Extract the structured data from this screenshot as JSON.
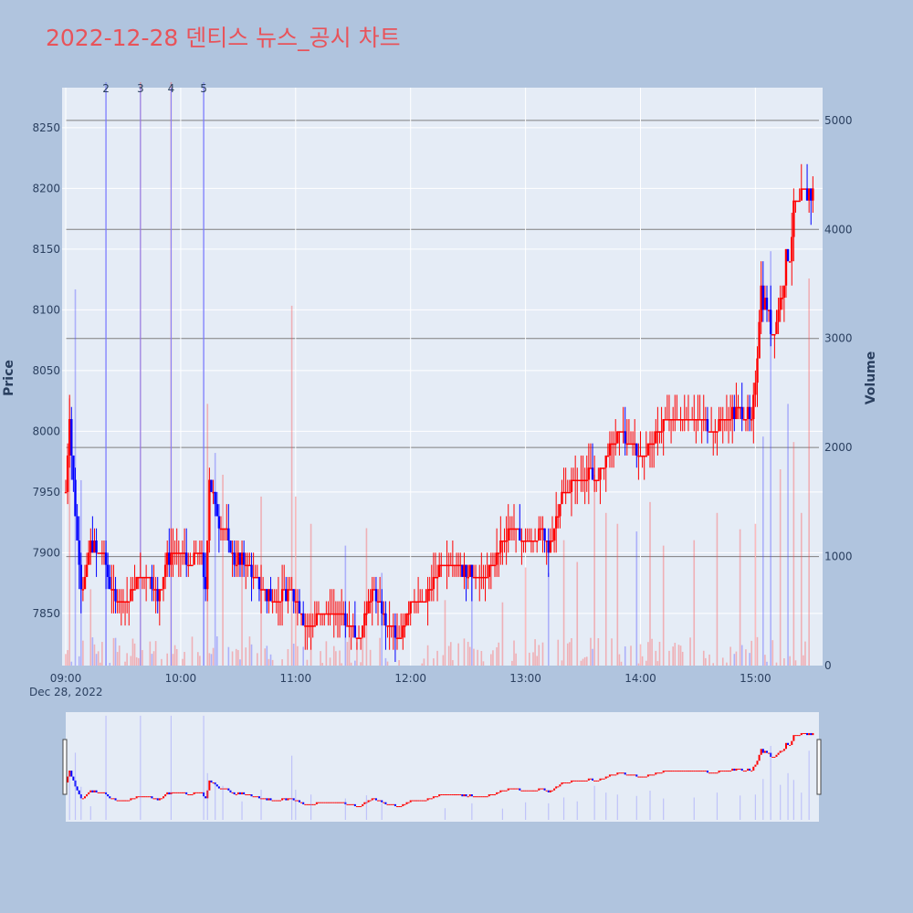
{
  "title": "2022-12-28 덴티스 뉴스_공시 차트",
  "colors": {
    "background": "#b0c4de",
    "plot_bg": "#e5ecf6",
    "up": "#ff0000",
    "down": "#0000ff",
    "title": "#e8535a",
    "news_line": "#8080ff"
  },
  "chart_data": {
    "type": "candlestick",
    "ylabel": "Price",
    "y2label": "Volume",
    "x_ticks": [
      "09:00",
      "10:00",
      "11:00",
      "12:00",
      "13:00",
      "14:00",
      "15:00"
    ],
    "x_date_label": "Dec 28, 2022",
    "price_ticks": [
      7850,
      7900,
      7950,
      8000,
      8050,
      8100,
      8150,
      8200,
      8250
    ],
    "price_range": [
      7807,
      8283
    ],
    "volume_ticks": [
      0,
      1000,
      2000,
      3000,
      4000,
      5000
    ],
    "volume_range": [
      0,
      5300
    ],
    "session": [
      "09:00",
      "15:30"
    ],
    "news_markers": [
      {
        "label": "2",
        "time": "09:21"
      },
      {
        "label": "3",
        "time": "09:39"
      },
      {
        "label": "4",
        "time": "09:55"
      },
      {
        "label": "5",
        "time": "10:12"
      }
    ],
    "price_path": [
      [
        "09:00",
        7950
      ],
      [
        "09:02",
        8010
      ],
      [
        "09:04",
        7960
      ],
      [
        "09:06",
        7910
      ],
      [
        "09:08",
        7870
      ],
      [
        "09:10",
        7880
      ],
      [
        "09:13",
        7910
      ],
      [
        "09:16",
        7900
      ],
      [
        "09:20",
        7900
      ],
      [
        "09:23",
        7870
      ],
      [
        "09:26",
        7860
      ],
      [
        "09:33",
        7860
      ],
      [
        "09:38",
        7880
      ],
      [
        "09:44",
        7880
      ],
      [
        "09:48",
        7860
      ],
      [
        "09:52",
        7890
      ],
      [
        "09:56",
        7905
      ],
      [
        "10:05",
        7890
      ],
      [
        "10:10",
        7905
      ],
      [
        "10:13",
        7870
      ],
      [
        "10:15",
        7960
      ],
      [
        "10:19",
        7930
      ],
      [
        "10:23",
        7920
      ],
      [
        "10:28",
        7895
      ],
      [
        "10:35",
        7890
      ],
      [
        "10:42",
        7870
      ],
      [
        "10:50",
        7860
      ],
      [
        "10:58",
        7870
      ],
      [
        "11:05",
        7840
      ],
      [
        "11:15",
        7850
      ],
      [
        "11:25",
        7850
      ],
      [
        "11:33",
        7830
      ],
      [
        "11:40",
        7870
      ],
      [
        "11:47",
        7840
      ],
      [
        "11:55",
        7830
      ],
      [
        "12:00",
        7860
      ],
      [
        "12:08",
        7860
      ],
      [
        "12:15",
        7890
      ],
      [
        "12:25",
        7890
      ],
      [
        "12:33",
        7880
      ],
      [
        "12:40",
        7880
      ],
      [
        "12:45",
        7900
      ],
      [
        "12:52",
        7920
      ],
      [
        "13:00",
        7910
      ],
      [
        "13:08",
        7920
      ],
      [
        "13:12",
        7900
      ],
      [
        "13:18",
        7945
      ],
      [
        "13:25",
        7960
      ],
      [
        "13:32",
        7965
      ],
      [
        "13:38",
        7960
      ],
      [
        "13:45",
        7990
      ],
      [
        "13:50",
        8000
      ],
      [
        "13:55",
        7990
      ],
      [
        "14:00",
        7980
      ],
      [
        "14:05",
        7990
      ],
      [
        "14:12",
        8005
      ],
      [
        "14:20",
        8010
      ],
      [
        "14:28",
        8015
      ],
      [
        "14:36",
        8000
      ],
      [
        "14:44",
        8010
      ],
      [
        "14:52",
        8020
      ],
      [
        "14:58",
        8010
      ],
      [
        "15:00",
        8040
      ],
      [
        "15:03",
        8120
      ],
      [
        "15:06",
        8100
      ],
      [
        "15:09",
        8080
      ],
      [
        "15:12",
        8100
      ],
      [
        "15:15",
        8130
      ],
      [
        "15:18",
        8150
      ],
      [
        "15:20",
        8180
      ],
      [
        "15:30",
        8200
      ]
    ],
    "volume_spikes": [
      [
        "09:02",
        2450
      ],
      [
        "09:05",
        3450
      ],
      [
        "09:08",
        1700
      ],
      [
        "09:13",
        700
      ],
      [
        "09:21",
        5350
      ],
      [
        "09:39",
        5350
      ],
      [
        "09:55",
        5350
      ],
      [
        "10:12",
        5350
      ],
      [
        "10:14",
        2400
      ],
      [
        "10:18",
        1950
      ],
      [
        "10:22",
        1750
      ],
      [
        "10:32",
        950
      ],
      [
        "10:42",
        1550
      ],
      [
        "10:58",
        3300
      ],
      [
        "11:00",
        1550
      ],
      [
        "11:08",
        1300
      ],
      [
        "11:26",
        1100
      ],
      [
        "11:37",
        1260
      ],
      [
        "11:45",
        850
      ],
      [
        "12:18",
        600
      ],
      [
        "12:32",
        850
      ],
      [
        "12:48",
        580
      ],
      [
        "13:00",
        900
      ],
      [
        "13:12",
        850
      ],
      [
        "13:20",
        1150
      ],
      [
        "13:27",
        950
      ],
      [
        "13:36",
        1750
      ],
      [
        "13:42",
        1400
      ],
      [
        "13:48",
        1300
      ],
      [
        "13:58",
        1230
      ],
      [
        "14:05",
        1500
      ],
      [
        "14:12",
        1100
      ],
      [
        "14:28",
        1150
      ],
      [
        "14:40",
        1400
      ],
      [
        "14:52",
        1250
      ],
      [
        "15:00",
        1300
      ],
      [
        "15:04",
        2100
      ],
      [
        "15:08",
        3800
      ],
      [
        "15:13",
        1800
      ],
      [
        "15:17",
        2400
      ],
      [
        "15:20",
        2050
      ],
      [
        "15:24",
        1400
      ],
      [
        "15:28",
        3550
      ]
    ]
  }
}
